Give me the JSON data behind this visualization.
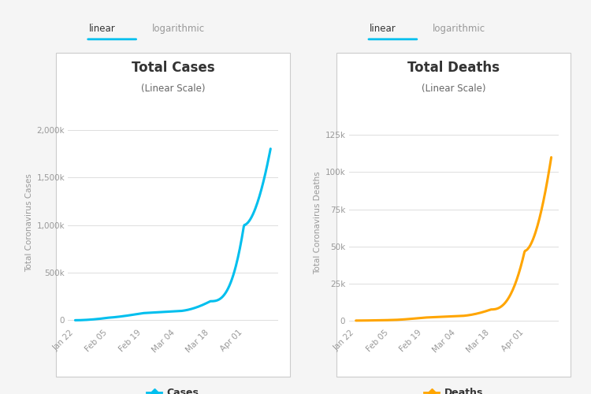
{
  "cases_x_labels": [
    "Jan 22",
    "Feb 05",
    "Feb 19",
    "Mar 04",
    "Mar 18",
    "Apr 01"
  ],
  "cases_y_ticks": [
    0,
    500000,
    1000000,
    1500000,
    2000000
  ],
  "cases_y_tick_labels": [
    "0",
    "500k",
    "1,000k",
    "1,500k",
    "2,000k"
  ],
  "cases_ylim": [
    -50000,
    2100000
  ],
  "cases_title": "Total Cases",
  "cases_subtitle": "(Linear Scale)",
  "cases_ylabel": "Total Coronavirus Cases",
  "cases_color": "#00BFEE",
  "cases_legend_label": "Cases",
  "deaths_x_labels": [
    "Jan 22",
    "Feb 05",
    "Feb 19",
    "Mar 04",
    "Mar 18",
    "Apr 01"
  ],
  "deaths_y_ticks": [
    0,
    25000,
    50000,
    75000,
    100000,
    125000
  ],
  "deaths_y_tick_labels": [
    "0",
    "25k",
    "50k",
    "75k",
    "100k",
    "125k"
  ],
  "deaths_ylim": [
    -3000,
    135000
  ],
  "deaths_title": "Total Deaths",
  "deaths_subtitle": "(Linear Scale)",
  "deaths_ylabel": "Total Coronavirus Deaths",
  "deaths_color": "#FFA500",
  "deaths_legend_label": "Deaths",
  "tab_active": "linear",
  "tab_inactive": "logarithmic",
  "tab_active_color": "#333333",
  "tab_inactive_color": "#999999",
  "tab_underline_color": "#00BFEE",
  "background_color": "#F5F5F5",
  "grid_color": "#DDDDDD",
  "tick_color": "#999999",
  "panel_bg": "#FFFFFF",
  "panel_border_color": "#CCCCCC",
  "title_color": "#333333",
  "subtitle_color": "#666666"
}
